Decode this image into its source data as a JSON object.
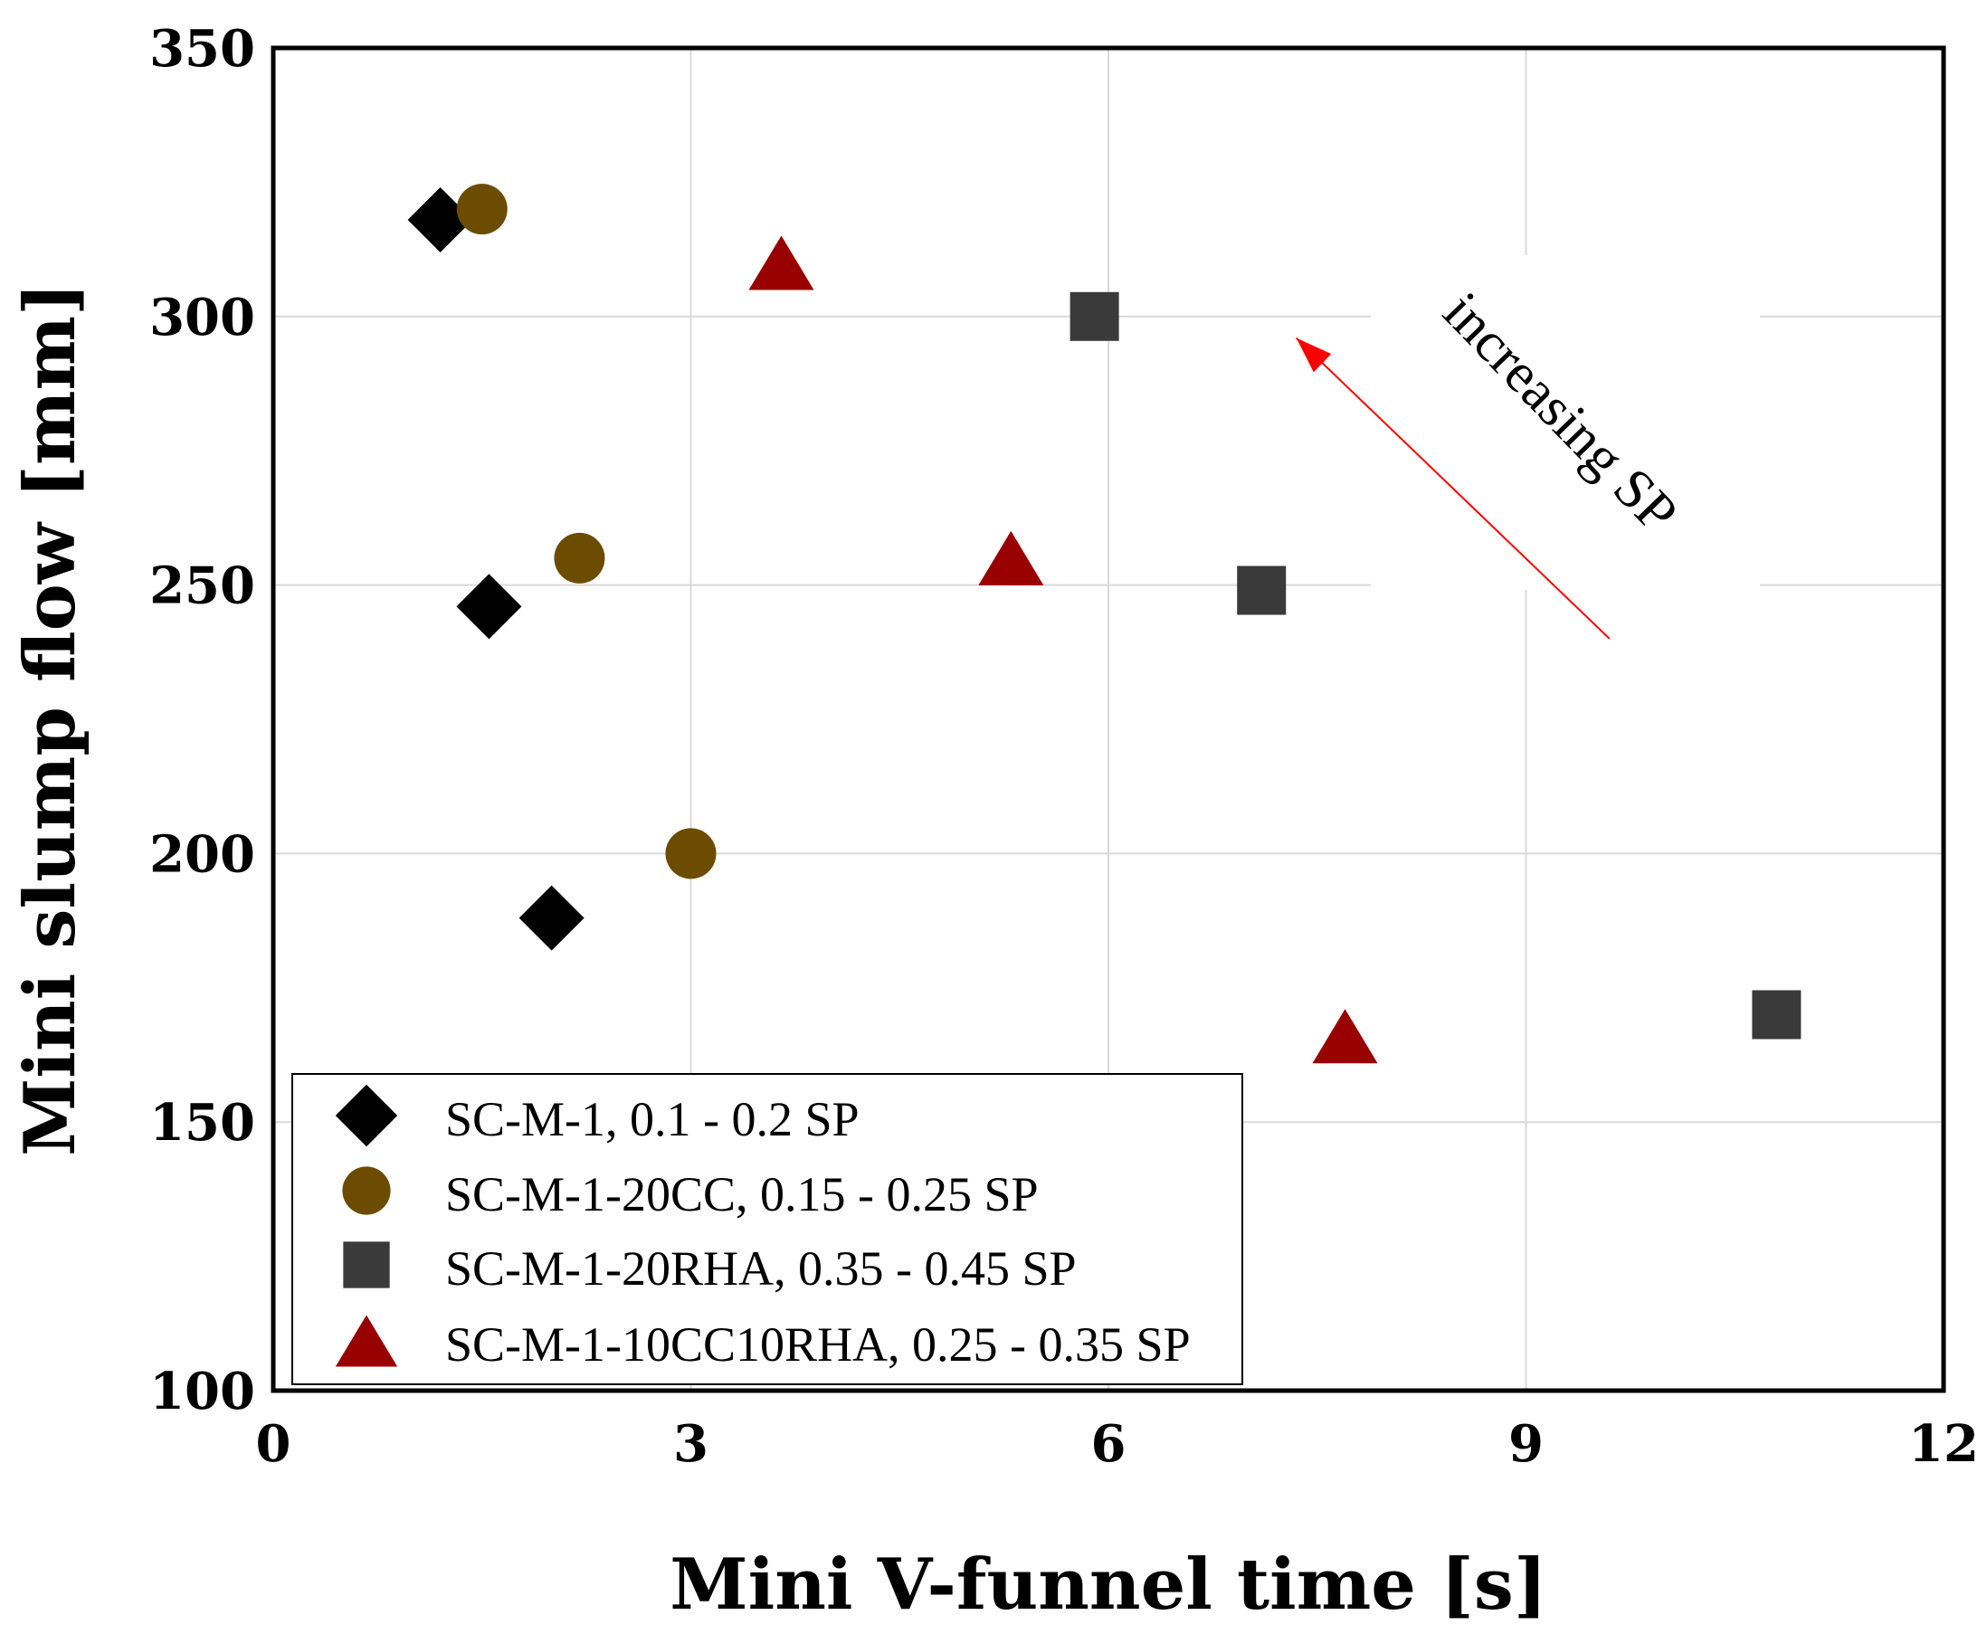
{
  "chart_data": {
    "type": "scatter",
    "title": "",
    "xlabel": "Mini V-funnel time [s]",
    "ylabel": "Mini slump flow [mm]",
    "xlim": [
      0,
      12
    ],
    "ylim": [
      100,
      350
    ],
    "xticks": [
      "0",
      "3",
      "6",
      "9",
      "12"
    ],
    "yticks": [
      "100",
      "150",
      "200",
      "250",
      "300",
      "350"
    ],
    "grid": true,
    "legend_position": "bottom-left",
    "series": [
      {
        "name": "SC-M-1, 0.1 - 0.2 SP",
        "marker": "diamond",
        "color": "#000000",
        "points": [
          [
            1.2,
            318
          ],
          [
            1.55,
            246
          ],
          [
            2.0,
            188
          ]
        ]
      },
      {
        "name": "SC-M-1-20CC, 0.15 - 0.25 SP",
        "marker": "circle",
        "color": "#6b4c00",
        "points": [
          [
            1.5,
            320
          ],
          [
            2.2,
            255
          ],
          [
            3.0,
            200
          ]
        ]
      },
      {
        "name": "SC-M-1-20RHA, 0.35 - 0.45 SP",
        "marker": "square",
        "color": "#3a3a3a",
        "points": [
          [
            5.9,
            300
          ],
          [
            7.1,
            249
          ],
          [
            10.8,
            170
          ]
        ]
      },
      {
        "name": "SC-M-1-10CC10RHA, 0.25 - 0.35 SP",
        "marker": "triangle",
        "color": "#990000",
        "points": [
          [
            3.65,
            310
          ],
          [
            5.3,
            255
          ],
          [
            7.7,
            166
          ]
        ]
      }
    ],
    "annotation": {
      "text": "increasing SP",
      "arrow_color": "#ff0000",
      "arrow_from": [
        9.6,
        240
      ],
      "arrow_to": [
        7.35,
        296
      ]
    }
  }
}
